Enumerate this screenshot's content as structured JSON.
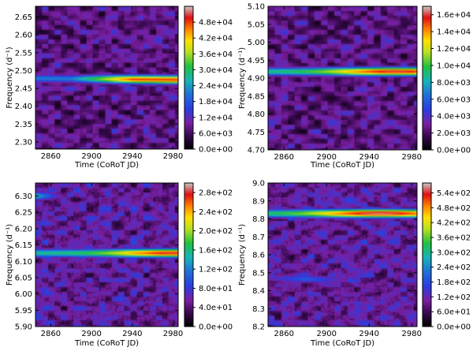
{
  "figure": {
    "panels": [
      {
        "xlabel": "Time (CoRoT JD)",
        "ylabel": "Frequency (d⁻¹)"
      }
    ]
  },
  "chart_data": [
    {
      "type": "heatmap",
      "xlabel": "Time (CoRoT JD)",
      "ylabel": "Frequency (d⁻¹)",
      "xlim": [
        2845,
        2985
      ],
      "ylim": [
        2.28,
        2.68
      ],
      "xticks": [
        "2860",
        "2900",
        "2940",
        "2980"
      ],
      "yticks": [
        "2.30",
        "2.35",
        "2.40",
        "2.45",
        "2.50",
        "2.55",
        "2.60",
        "2.65"
      ],
      "colorbar_ticks": [
        "0.0e+00",
        "6.0e+03",
        "1.2e+04",
        "1.8e+04",
        "2.4e+04",
        "3.0e+04",
        "3.6e+04",
        "4.2e+04",
        "4.8e+04"
      ],
      "colorbar_range": [
        0,
        54000
      ],
      "ridges": [
        {
          "freq_start": 2.478,
          "freq_end": 2.474,
          "peak_time": 2960,
          "peak_power": 48000
        }
      ]
    },
    {
      "type": "heatmap",
      "xlabel": "Time (CoRoT JD)",
      "ylabel": "Frequency (d⁻¹)",
      "xlim": [
        2845,
        2985
      ],
      "ylim": [
        4.7,
        5.1
      ],
      "xticks": [
        "2860",
        "2900",
        "2940",
        "2980"
      ],
      "yticks": [
        "4.70",
        "4.75",
        "4.80",
        "4.85",
        "4.90",
        "4.95",
        "5.00",
        "5.05",
        "5.10"
      ],
      "colorbar_ticks": [
        "0.0e+00",
        "2.0e+03",
        "4.0e+03",
        "6.0e+03",
        "8.0e+03",
        "1.0e+04",
        "1.2e+04",
        "1.4e+04",
        "1.6e+04"
      ],
      "colorbar_range": [
        0,
        17000
      ],
      "ridges": [
        {
          "freq_start": 4.918,
          "freq_end": 4.918,
          "peak_time": 2965,
          "peak_power": 16000
        }
      ]
    },
    {
      "type": "heatmap",
      "xlabel": "Time (CoRoT JD)",
      "ylabel": "Frequency (d⁻¹)",
      "xlim": [
        2845,
        2985
      ],
      "ylim": [
        5.9,
        6.34
      ],
      "xticks": [
        "2860",
        "2900",
        "2940",
        "2980"
      ],
      "yticks": [
        "5.90",
        "5.95",
        "6.00",
        "6.05",
        "6.10",
        "6.15",
        "6.20",
        "6.25",
        "6.30"
      ],
      "colorbar_ticks": [
        "0.0e+00",
        "4.0e+01",
        "8.0e+01",
        "1.2e+02",
        "1.6e+02",
        "2.0e+02",
        "2.4e+02",
        "2.8e+02"
      ],
      "colorbar_range": [
        0,
        300
      ],
      "ridges": [
        {
          "freq_start": 6.125,
          "freq_end": 6.125,
          "peak_time": 2980,
          "peak_power": 280
        },
        {
          "freq_start": 6.3,
          "freq_end": 6.3,
          "peak_time": 2850,
          "peak_power": 150
        }
      ]
    },
    {
      "type": "heatmap",
      "xlabel": "Time (CoRoT JD)",
      "ylabel": "Frequency (d⁻¹)",
      "xlim": [
        2845,
        2985
      ],
      "ylim": [
        8.2,
        9.0
      ],
      "xticks": [
        "2860",
        "2900",
        "2940",
        "2980"
      ],
      "yticks": [
        "8.2",
        "8.3",
        "8.4",
        "8.5",
        "8.6",
        "8.7",
        "8.8",
        "8.9",
        "9.0"
      ],
      "colorbar_ticks": [
        "0.0e+00",
        "6.0e+01",
        "1.2e+02",
        "1.8e+02",
        "2.4e+02",
        "3.0e+02",
        "3.6e+02",
        "4.2e+02",
        "4.8e+02",
        "5.4e+02"
      ],
      "colorbar_range": [
        0,
        580
      ],
      "ridges": [
        {
          "freq_start": 8.83,
          "freq_end": 8.83,
          "peak_time": 2950,
          "peak_power": 560
        },
        {
          "freq_start": 8.47,
          "freq_end": 8.45,
          "peak_time": 2880,
          "peak_power": 200
        }
      ]
    }
  ]
}
